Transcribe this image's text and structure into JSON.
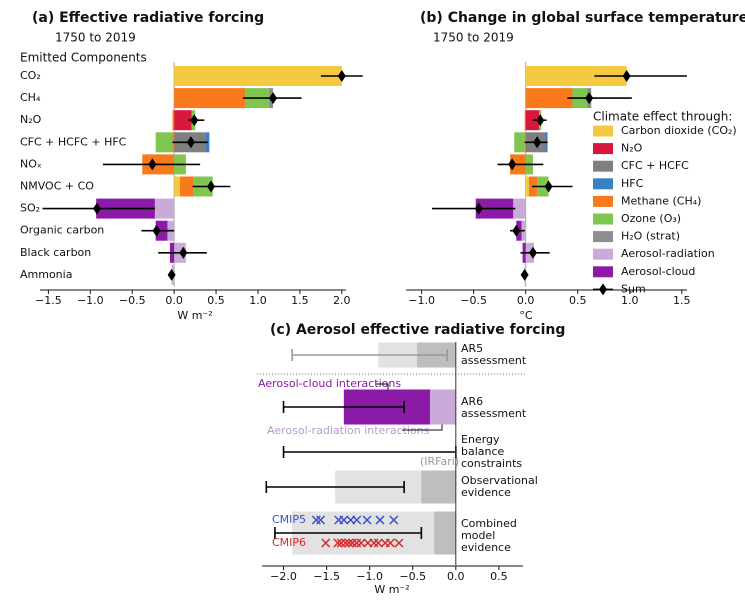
{
  "chart_data": [
    {
      "type": "stacked_bar",
      "title": "(a) Effective radiative forcing",
      "subtitle": "1750 to 2019",
      "ylabel": "Emitted Components",
      "xlabel": "W m⁻²",
      "categories": [
        "CO₂",
        "CH₄",
        "N₂O",
        "CFC + HCFC + HFC",
        "NOₓ",
        "NMVOC + CO",
        "SO₂",
        "Organic carbon",
        "Black carbon",
        "Ammonia"
      ],
      "xlim": [
        -1.6,
        2.05
      ],
      "xticks": [
        {
          "value": -1.5,
          "label": "−1.5"
        },
        {
          "value": -1.0,
          "label": "−1.0"
        },
        {
          "value": -0.5,
          "label": "−0.5"
        },
        {
          "value": 0.0,
          "label": "0.0"
        },
        {
          "value": 0.5,
          "label": "0.5"
        },
        {
          "value": 1.0,
          "label": "1.0"
        },
        {
          "value": 1.5,
          "label": "1.5"
        },
        {
          "value": 2.0,
          "label": "2.0"
        }
      ],
      "series": [
        {
          "color": "#f5c842",
          "values": [
            2.0,
            0,
            0,
            0,
            0,
            0.07,
            0,
            0,
            0,
            0
          ]
        },
        {
          "color": "#d7173b",
          "values": [
            0,
            0,
            0.21,
            0,
            0,
            0,
            0,
            0,
            0,
            0
          ]
        },
        {
          "color": "#7f7f7f",
          "values": [
            0,
            0,
            0,
            0.38,
            0,
            0,
            0,
            0,
            0,
            0
          ]
        },
        {
          "color": "#3b7fc4",
          "values": [
            0,
            0,
            0,
            0.04,
            0,
            0,
            0,
            0,
            0,
            0
          ]
        },
        {
          "color": "#f87a1d",
          "values": [
            0,
            0.85,
            -0.02,
            -0.02,
            -0.38,
            0.16,
            0,
            0,
            0,
            0
          ]
        },
        {
          "color": "#7fc650",
          "values": [
            0,
            0.28,
            0.04,
            -0.2,
            0.14,
            0.23,
            0,
            0,
            0,
            0
          ]
        },
        {
          "color": "#8e8e8e",
          "values": [
            0,
            0.05,
            0,
            0,
            0,
            0,
            0,
            0,
            0,
            0
          ]
        },
        {
          "color": "#c9aad8",
          "values": [
            0,
            0,
            0,
            0,
            0,
            0,
            -0.23,
            -0.08,
            0.14,
            -0.03
          ]
        },
        {
          "color": "#8b1aa6",
          "values": [
            0,
            0,
            0,
            0,
            0,
            0,
            -0.7,
            -0.14,
            -0.05,
            0
          ]
        }
      ],
      "sum": {
        "values": [
          2.0,
          1.18,
          0.24,
          0.2,
          -0.26,
          0.44,
          -0.92,
          -0.21,
          0.11,
          -0.03
        ],
        "low": [
          1.75,
          0.82,
          0.17,
          -0.02,
          -0.85,
          0.22,
          -1.57,
          -0.39,
          -0.19,
          -0.05
        ],
        "high": [
          2.25,
          1.52,
          0.36,
          0.4,
          0.31,
          0.67,
          -0.23,
          0.0,
          0.39,
          -0.01
        ]
      }
    },
    {
      "type": "stacked_bar",
      "title": "(b) Change in global surface temperature",
      "subtitle": "1750 to 2019",
      "xlabel": "°C",
      "legend_title": "Climate effect through:",
      "xlim": [
        -1.15,
        1.55
      ],
      "xticks": [
        {
          "value": -1.0,
          "label": "−1.0"
        },
        {
          "value": -0.5,
          "label": "−0.5"
        },
        {
          "value": 0.0,
          "label": "0.0"
        },
        {
          "value": 0.5,
          "label": "0.5"
        },
        {
          "value": 1.0,
          "label": "1.0"
        },
        {
          "value": 1.5,
          "label": "1.5"
        }
      ],
      "series": [
        {
          "name": "Carbon dioxide (CO₂)",
          "color": "#f5c842",
          "values": [
            0.97,
            0,
            0,
            0,
            0,
            0.03,
            0,
            0,
            0,
            0
          ]
        },
        {
          "name": "N₂O",
          "color": "#d7173b",
          "values": [
            0,
            0,
            0.13,
            0,
            0,
            0,
            0,
            0,
            0,
            0
          ]
        },
        {
          "name": "CFC + HCFC",
          "color": "#7f7f7f",
          "values": [
            0,
            0,
            0,
            0.19,
            0,
            0,
            0,
            0,
            0,
            0
          ]
        },
        {
          "name": "HFC",
          "color": "#3b7fc4",
          "values": [
            0,
            0,
            0,
            0.02,
            0,
            0,
            0,
            0,
            0,
            0
          ]
        },
        {
          "name": "Methane (CH₄)",
          "color": "#f87a1d",
          "values": [
            0,
            0.45,
            -0.01,
            -0.01,
            -0.15,
            0.08,
            0,
            0,
            0,
            0
          ]
        },
        {
          "name": "Ozone (O₃)",
          "color": "#7fc650",
          "values": [
            0,
            0.14,
            0.02,
            -0.1,
            0.07,
            0.11,
            0,
            0,
            0,
            0
          ]
        },
        {
          "name": "H₂O (strat)",
          "color": "#8e8e8e",
          "values": [
            0,
            0.04,
            0,
            0,
            0,
            0,
            0,
            0,
            0,
            0
          ]
        },
        {
          "name": "Aerosol-radiation",
          "color": "#c9aad8",
          "values": [
            0,
            0,
            0,
            0,
            0,
            0,
            -0.12,
            -0.04,
            0.08,
            -0.01
          ]
        },
        {
          "name": "Aerosol-cloud",
          "color": "#8b1aa6",
          "values": [
            0,
            0,
            0,
            0,
            0,
            0,
            -0.36,
            -0.05,
            -0.03,
            0
          ]
        }
      ],
      "sum": {
        "name": "Sum",
        "values": [
          0.97,
          0.61,
          0.14,
          0.11,
          -0.13,
          0.22,
          -0.45,
          -0.09,
          0.07,
          -0.01
        ],
        "low": [
          0.66,
          0.4,
          0.07,
          -0.01,
          -0.27,
          0.06,
          -0.9,
          -0.15,
          -0.05,
          -0.02
        ],
        "high": [
          1.55,
          1.02,
          0.2,
          0.21,
          0.17,
          0.45,
          -0.1,
          -0.01,
          0.23,
          0.0
        ]
      }
    },
    {
      "type": "range",
      "title": "(c) Aerosol effective radiative forcing",
      "xlabel": "W m⁻²",
      "xlim": [
        -2.25,
        0.78
      ],
      "xticks": [
        {
          "value": -2.0,
          "label": "−2.0"
        },
        {
          "value": -1.5,
          "label": "−1.5"
        },
        {
          "value": -1.0,
          "label": "−1.0"
        },
        {
          "value": -0.5,
          "label": "−0.5"
        },
        {
          "value": 0.0,
          "label": "0.0"
        },
        {
          "value": 0.5,
          "label": "0.5"
        }
      ],
      "rows": [
        {
          "label": [
            "AR5",
            "assessment"
          ],
          "light": [
            -0.9,
            0
          ],
          "dark": [
            -0.45,
            0
          ],
          "range": [
            -1.9,
            -0.1
          ]
        },
        {
          "label": [
            "AR6",
            "assessment"
          ],
          "ari": -0.3,
          "aci": -1.0,
          "range": [
            -2.0,
            -0.6
          ]
        },
        {
          "label": [
            "Energy",
            "balance",
            "constraints"
          ],
          "range": [
            -2.0,
            0.0
          ]
        },
        {
          "label": [
            "Observational",
            "evidence"
          ],
          "light": [
            -1.4,
            0
          ],
          "dark": [
            -0.4,
            0
          ],
          "range": [
            -2.2,
            -0.6
          ]
        },
        {
          "label": [
            "Combined",
            "model",
            "evidence"
          ],
          "light": [
            -1.9,
            0
          ],
          "dark": [
            -0.25,
            0
          ],
          "range": [
            -2.1,
            -0.4
          ]
        }
      ],
      "annotations": [
        "Aerosol-cloud interactions",
        "Aerosol-radiation interactions",
        "(IRFari)"
      ],
      "cmip": [
        {
          "name": "CMIP5",
          "color": "#3b4fc8",
          "values": [
            -1.62,
            -1.57,
            -1.36,
            -1.3,
            -1.22,
            -1.15,
            -1.03,
            -0.88,
            -0.72
          ]
        },
        {
          "name": "CMIP6",
          "color": "#d42a2a",
          "values": [
            -1.51,
            -1.37,
            -1.33,
            -1.28,
            -1.24,
            -1.2,
            -1.15,
            -1.1,
            -1.02,
            -0.95,
            -0.9,
            -0.82,
            -0.76,
            -0.66
          ]
        }
      ]
    }
  ]
}
